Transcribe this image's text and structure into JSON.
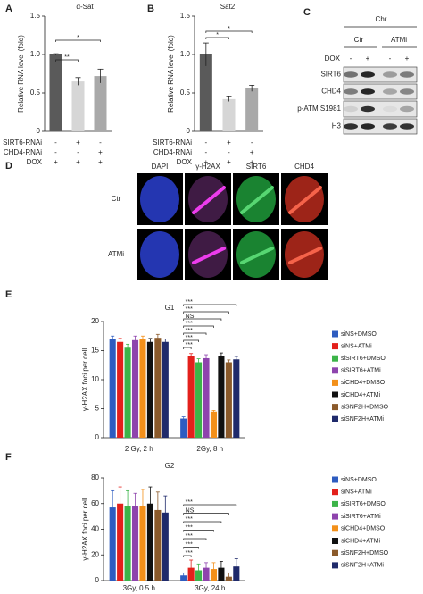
{
  "chart_data": [
    {
      "panel": "A",
      "type": "bar",
      "title": "α-Sat",
      "ylabel": "Relative RNA level (fold)",
      "values": [
        1,
        0.65,
        0.72
      ],
      "errors": [
        0.01,
        0.05,
        0.09
      ],
      "colors": [
        "#5a5a5a",
        "#d6d6d6",
        "#a9a9a9"
      ],
      "ylim": [
        0,
        1.5
      ],
      "yticks": [
        0,
        0.5,
        {
          "value": 1,
          "label": "1.0"
        },
        1.5
      ],
      "significance": [
        "**",
        "*"
      ],
      "conditions": [
        {
          "name": "SIRT6-RNAi",
          "values": [
            "-",
            "+",
            "-"
          ]
        },
        {
          "name": "CHD4-RNAi",
          "values": [
            "-",
            "-",
            "+"
          ]
        },
        {
          "name": "DOX",
          "values": [
            "+",
            "+",
            "+"
          ]
        }
      ]
    },
    {
      "panel": "B",
      "type": "bar",
      "title": "Sat2",
      "ylabel": "Relative RNA level (fold)",
      "values": [
        1,
        0.42,
        0.56
      ],
      "errors": [
        0.15,
        0.03,
        0.04
      ],
      "colors": [
        "#5a5a5a",
        "#d6d6d6",
        "#a9a9a9"
      ],
      "ylim": [
        0,
        1.5
      ],
      "yticks": [
        0,
        0.5,
        {
          "value": 1,
          "label": "1.0"
        },
        1.5
      ],
      "significance": [
        "*",
        "*"
      ],
      "conditions": [
        {
          "name": "SIRT6-RNAi",
          "values": [
            "-",
            "+",
            "-"
          ]
        },
        {
          "name": "CHD4-RNAi",
          "values": [
            "-",
            "-",
            "+"
          ]
        },
        {
          "name": "DOX",
          "values": [
            "+",
            "+",
            "+"
          ]
        }
      ]
    },
    {
      "panel": "E",
      "type": "grouped-bar",
      "title": "G1",
      "ylabel": "γ-H2AX foci per cell",
      "categories": [
        "2 Gy, 2 h",
        "2Gy, 8 h"
      ],
      "series": [
        {
          "name": "siNS+DMSO",
          "color": "#2e5cc0",
          "values": [
            17,
            3.3
          ],
          "errors": [
            0.5,
            0.3
          ]
        },
        {
          "name": "siNS+ATMi",
          "color": "#e3201b",
          "values": [
            16.5,
            14
          ],
          "errors": [
            0.6,
            0.5
          ]
        },
        {
          "name": "siSIRT6+DMSO",
          "color": "#3cb449",
          "values": [
            15.5,
            13
          ],
          "errors": [
            0.6,
            0.6
          ]
        },
        {
          "name": "siSIRT6+ATMi",
          "color": "#8e44ad",
          "values": [
            16.8,
            13.7
          ],
          "errors": [
            0.7,
            0.6
          ]
        },
        {
          "name": "siCHD4+DMSO",
          "color": "#f3901a",
          "values": [
            17,
            4.5
          ],
          "errors": [
            0.5,
            0.2
          ]
        },
        {
          "name": "siCHD4+ATMi",
          "color": "#111111",
          "values": [
            16.5,
            14
          ],
          "errors": [
            0.6,
            0.6
          ]
        },
        {
          "name": "siSNF2H+DMSO",
          "color": "#8b5a2b",
          "values": [
            17.2,
            13
          ],
          "errors": [
            0.6,
            0.4
          ]
        },
        {
          "name": "siSNF2H+ATMi",
          "color": "#1f2a6b",
          "values": [
            16.5,
            13.5
          ],
          "errors": [
            0.5,
            0.5
          ]
        }
      ],
      "ylim": [
        0,
        20
      ],
      "yticks": [
        0,
        5,
        10,
        15,
        20
      ],
      "significance": [
        "***",
        "***",
        "***",
        "***",
        "NS",
        "***",
        "***"
      ],
      "legend": "right"
    },
    {
      "panel": "F",
      "type": "grouped-bar",
      "title": "G2",
      "ylabel": "γ-H2AX foci per cell",
      "categories": [
        "3Gy, 0.5 h",
        "3Gy, 24 h"
      ],
      "series": [
        {
          "name": "siNS+DMSO",
          "color": "#2e5cc0",
          "values": [
            57,
            4
          ],
          "errors": [
            13,
            2
          ]
        },
        {
          "name": "siNS+ATMi",
          "color": "#e3201b",
          "values": [
            60,
            10
          ],
          "errors": [
            13,
            6
          ]
        },
        {
          "name": "siSIRT6+DMSO",
          "color": "#3cb449",
          "values": [
            58,
            8
          ],
          "errors": [
            12,
            5
          ]
        },
        {
          "name": "siSIRT6+ATMi",
          "color": "#8e44ad",
          "values": [
            58,
            10
          ],
          "errors": [
            10,
            4
          ]
        },
        {
          "name": "siCHD4+DMSO",
          "color": "#f3901a",
          "values": [
            58,
            9
          ],
          "errors": [
            13,
            5
          ]
        },
        {
          "name": "siCHD4+ATMi",
          "color": "#111111",
          "values": [
            60,
            10
          ],
          "errors": [
            13,
            5
          ]
        },
        {
          "name": "siSNF2H+DMSO",
          "color": "#8b5a2b",
          "values": [
            55,
            3
          ],
          "errors": [
            14,
            3
          ]
        },
        {
          "name": "siSNF2H+ATMi",
          "color": "#1f2a6b",
          "values": [
            53,
            11
          ],
          "errors": [
            13,
            6
          ]
        }
      ],
      "ylim": [
        0,
        80
      ],
      "yticks": [
        0,
        20,
        40,
        60,
        80
      ],
      "significance": [
        "***",
        "***",
        "***",
        "***",
        "***",
        "NS",
        "***"
      ],
      "legend": "right"
    }
  ],
  "blot": {
    "panel": "C",
    "title": "Chr",
    "groups": [
      "Ctr",
      "ATMi"
    ],
    "treatment_label": "DOX",
    "treatment": [
      "-",
      "+",
      "-",
      "+"
    ],
    "rows": [
      "SIRT6",
      "CHD4",
      "p-ATM S1981",
      "H3"
    ]
  },
  "micrograph": {
    "panel": "D",
    "columns": [
      "DAPI",
      "γ-H2AX",
      "SIRT6",
      "CHD4"
    ],
    "rows": [
      "Ctr",
      "ATMi"
    ]
  }
}
